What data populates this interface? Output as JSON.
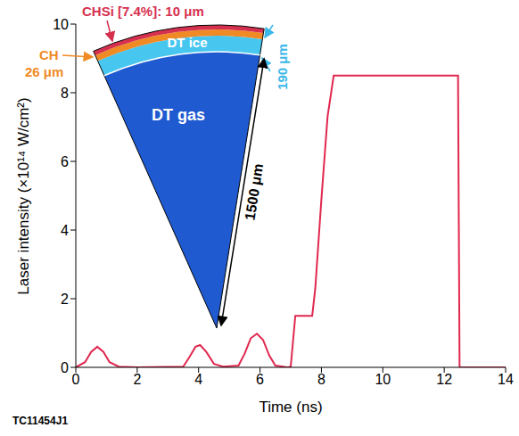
{
  "chart_data": {
    "type": "line",
    "x_label": "Time (ns)",
    "y_label": "Laser intensity (×10¹⁴ W/cm²)",
    "x": [
      0,
      0.3,
      0.5,
      0.7,
      0.9,
      1.1,
      1.4,
      2,
      3.5,
      3.7,
      3.9,
      4.05,
      4.25,
      4.5,
      4.8,
      5.3,
      5.5,
      5.7,
      5.9,
      6.1,
      6.3,
      6.5,
      6.9,
      7.0,
      7.15,
      7.7,
      7.8,
      8.0,
      8.2,
      8.4,
      12.45,
      12.5,
      14
    ],
    "values": [
      0,
      0.15,
      0.45,
      0.6,
      0.45,
      0.15,
      0.02,
      0,
      0.02,
      0.3,
      0.6,
      0.65,
      0.45,
      0.1,
      0.02,
      0.05,
      0.4,
      0.85,
      0.98,
      0.8,
      0.35,
      0.05,
      0,
      0.02,
      1.5,
      1.5,
      2.3,
      4.9,
      7.3,
      8.5,
      8.5,
      0,
      0
    ],
    "color": "#e0284f",
    "xlim": [
      0,
      14
    ],
    "ylim": [
      0,
      10
    ],
    "xticks": [
      0,
      2,
      4,
      6,
      8,
      10,
      12,
      14
    ],
    "yticks": [
      0,
      2,
      4,
      6,
      8,
      10
    ],
    "annotations": [
      "CHSi [7.4%]: 10 μm",
      "CH",
      "26 μm",
      "DT ice",
      "190 μm",
      "DT gas",
      "1500 μm",
      "TC11454J1"
    ]
  }
}
